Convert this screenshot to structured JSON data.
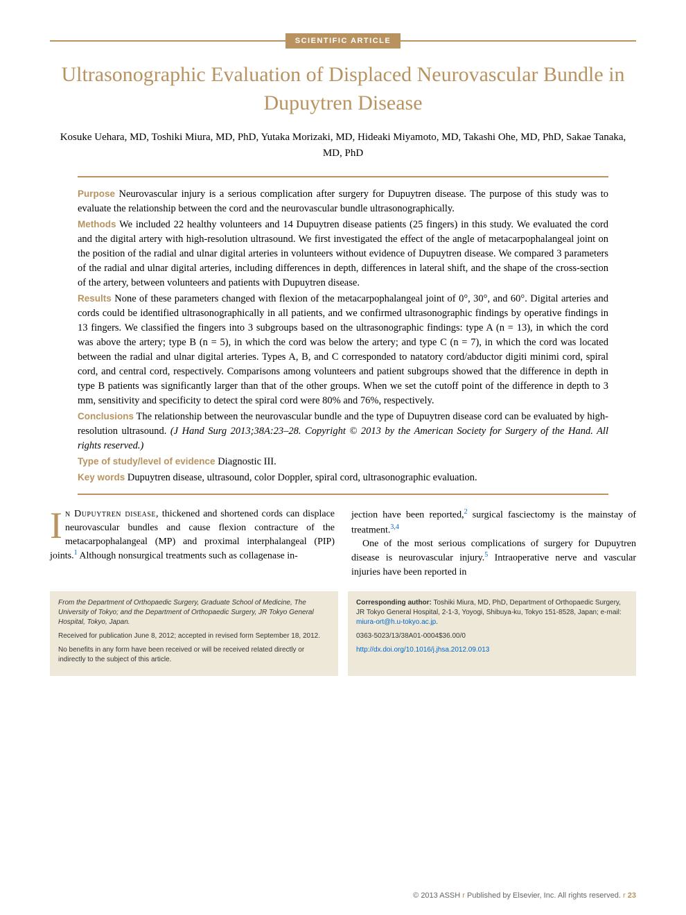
{
  "colors": {
    "accent": "#b8935f",
    "link": "#0066cc",
    "footer_bg": "#ede8d8",
    "text": "#000000",
    "footer_text": "#666666"
  },
  "typography": {
    "title_fontsize": 30,
    "body_fontsize": 14,
    "abstract_fontsize": 14.5,
    "footer_box_fontsize": 10,
    "dropcap_fontsize": 54
  },
  "badge": "SCIENTIFIC ARTICLE",
  "title": "Ultrasonographic Evaluation of Displaced Neurovascular Bundle in Dupuytren Disease",
  "authors": "Kosuke Uehara, MD, Toshiki Miura, MD, PhD, Yutaka Morizaki, MD, Hideaki Miyamoto, MD, Takashi Ohe, MD, PhD, Sakae Tanaka, MD, PhD",
  "abstract": {
    "purpose_label": "Purpose",
    "purpose": "Neurovascular injury is a serious complication after surgery for Dupuytren disease. The purpose of this study was to evaluate the relationship between the cord and the neurovascular bundle ultrasonographically.",
    "methods_label": "Methods",
    "methods": "We included 22 healthy volunteers and 14 Dupuytren disease patients (25 fingers) in this study. We evaluated the cord and the digital artery with high-resolution ultrasound. We first investigated the effect of the angle of metacarpophalangeal joint on the position of the radial and ulnar digital arteries in volunteers without evidence of Dupuytren disease. We compared 3 parameters of the radial and ulnar digital arteries, including differences in depth, differences in lateral shift, and the shape of the cross-section of the artery, between volunteers and patients with Dupuytren disease.",
    "results_label": "Results",
    "results": "None of these parameters changed with flexion of the metacarpophalangeal joint of 0°, 30°, and 60°. Digital arteries and cords could be identified ultrasonographically in all patients, and we confirmed ultrasonographic findings by operative findings in 13 fingers. We classified the fingers into 3 subgroups based on the ultrasonographic findings: type A (n = 13), in which the cord was above the artery; type B (n = 5), in which the cord was below the artery; and type C (n = 7), in which the cord was located between the radial and ulnar digital arteries. Types A, B, and C corresponded to natatory cord/abductor digiti minimi cord, spiral cord, and central cord, respectively. Comparisons among volunteers and patient subgroups showed that the difference in depth in type B patients was significantly larger than that of the other groups. When we set the cutoff point of the difference in depth to 3 mm, sensitivity and specificity to detect the spiral cord were 80% and 76%, respectively.",
    "conclusions_label": "Conclusions",
    "conclusions_text": "The relationship between the neurovascular bundle and the type of Dupuytren disease cord can be evaluated by high-resolution ultrasound. ",
    "citation": "(J Hand Surg 2013;38A:23–28. Copyright © 2013 by the American Society for Surgery of the Hand. All rights reserved.)",
    "study_type_label": "Type of study/level of evidence",
    "study_type": "Diagnostic III.",
    "keywords_label": "Key words",
    "keywords": "Dupuytren disease, ultrasound, color Doppler, spiral cord, ultrasonographic evaluation."
  },
  "body": {
    "col1_dropcap": "I",
    "col1_smallcaps": "n Dupuytren disease,",
    "col1_rest": " thickened and shortened cords can displace neurovascular bundles and cause flexion contracture of the metacarpophalangeal (MP) and proximal interphalangeal (PIP) joints.",
    "col1_ref1": "1",
    "col1_tail": " Although nonsurgical treatments such as collagenase in-",
    "col2_p1a": "jection have been reported,",
    "col2_ref2": "2",
    "col2_p1b": " surgical fasciectomy is the mainstay of treatment.",
    "col2_ref34": "3,4",
    "col2_p2a": "One of the most serious complications of surgery for Dupuytren disease is neurovascular injury.",
    "col2_ref5": "5",
    "col2_p2b": " Intraoperative nerve and vascular injuries have been reported in"
  },
  "footer_left": {
    "affiliation": "From the Department of Orthopaedic Surgery, Graduate School of Medicine, The University of Tokyo; and the Department of Orthopaedic Surgery, JR Tokyo General Hospital, Tokyo, Japan.",
    "received": "Received for publication June 8, 2012; accepted in revised form September 18, 2012.",
    "benefits": "No benefits in any form have been received or will be received related directly or indirectly to the subject of this article."
  },
  "footer_right": {
    "corr_label": "Corresponding author:",
    "corr_text": " Toshiki Miura, MD, PhD, Department of Orthopaedic Surgery, JR Tokyo General Hospital, 2-1-3, Yoyogi, Shibuya-ku, Tokyo 151-8528, Japan; e-mail: ",
    "corr_email": "miura-ort@h.u-tokyo.ac.jp",
    "issn": "0363-5023/13/38A01-0004$36.00/0",
    "doi": "http://dx.doi.org/10.1016/j.jhsa.2012.09.013"
  },
  "page_footer": {
    "copyright": "© 2013 ASSH",
    "publisher": "Published by Elsevier, Inc. All rights reserved.",
    "page": "23"
  }
}
